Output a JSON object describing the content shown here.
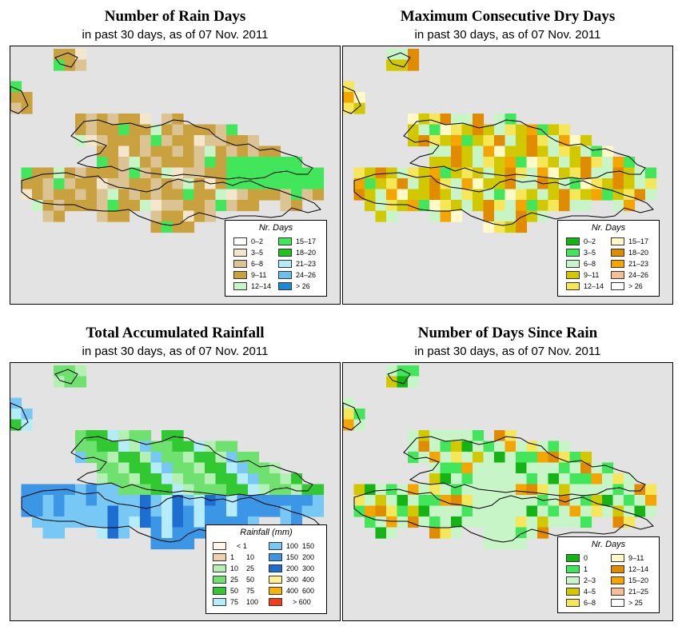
{
  "colors": {
    "map_background": "#e3e3e3",
    "coastline": "#000000"
  },
  "panels": [
    {
      "id": "rain_days",
      "title": "Number of Rain Days",
      "subtitle": "in past 30 days, as of  07 Nov. 2011",
      "legend_title": "Nr. Days",
      "legend": [
        {
          "label": "0–2",
          "color": "#ffffff"
        },
        {
          "label": "3–5",
          "color": "#f3e6cc"
        },
        {
          "label": "6–8",
          "color": "#dcc393"
        },
        {
          "label": "9–11",
          "color": "#c9a23f"
        },
        {
          "label": "12–14",
          "color": "#c8f5c8"
        },
        {
          "label": "15–17",
          "color": "#42e65a"
        },
        {
          "label": "18–20",
          "color": "#1ec31e"
        },
        {
          "label": "21–23",
          "color": "#b4ecfa"
        },
        {
          "label": "24–26",
          "color": "#6cc0f0"
        },
        {
          "label": "> 26",
          "color": "#1e8cd2"
        }
      ]
    },
    {
      "id": "dry_days",
      "title": "Maximum Consecutive Dry Days",
      "subtitle": "in past 30 days, as of  07 Nov. 2011",
      "legend_title": "Nr. Days",
      "legend": [
        {
          "label": "0–2",
          "color": "#14b414"
        },
        {
          "label": "3–5",
          "color": "#42e65a"
        },
        {
          "label": "6–8",
          "color": "#c8f5c8"
        },
        {
          "label": "9–11",
          "color": "#d2c800"
        },
        {
          "label": "12–14",
          "color": "#f5e65a"
        },
        {
          "label": "15–17",
          "color": "#fffac8"
        },
        {
          "label": "18–20",
          "color": "#e18c00"
        },
        {
          "label": "21–23",
          "color": "#f5a500"
        },
        {
          "label": "24–26",
          "color": "#f5be96"
        },
        {
          "label": "> 26",
          "color": "#ffffff"
        }
      ]
    },
    {
      "id": "rainfall",
      "title": "Total Accumulated Rainfall",
      "subtitle": "in past 30 days, as of  07 Nov. 2011",
      "legend_title": "Rainfall (mm)",
      "legend": [
        {
          "lo": "",
          "hi": "< 1",
          "color": "#fff5e6"
        },
        {
          "lo": "1",
          "hi": "10",
          "color": "#f0d2aa"
        },
        {
          "lo": "10",
          "hi": "25",
          "color": "#b4f0b4"
        },
        {
          "lo": "25",
          "hi": "50",
          "color": "#6ee16e"
        },
        {
          "lo": "50",
          "hi": "75",
          "color": "#32c832"
        },
        {
          "lo": "75",
          "hi": "100",
          "color": "#b4ecfa"
        },
        {
          "lo": "100",
          "hi": "150",
          "color": "#78c8f5"
        },
        {
          "lo": "150",
          "hi": "200",
          "color": "#3c96e6"
        },
        {
          "lo": "200",
          "hi": "300",
          "color": "#1e6ed2"
        },
        {
          "lo": "300",
          "hi": "400",
          "color": "#fff08c"
        },
        {
          "lo": "400",
          "hi": "600",
          "color": "#f5b400"
        },
        {
          "lo": "",
          "hi": "> 600",
          "color": "#f53c14"
        }
      ]
    },
    {
      "id": "since_rain",
      "title": "Number of Days Since Rain",
      "subtitle": "in past 30 days, as of  07 Nov. 2011",
      "legend_title": "Nr. Days",
      "legend": [
        {
          "label": "0",
          "color": "#14b414"
        },
        {
          "label": "1",
          "color": "#42e65a"
        },
        {
          "label": "2–3",
          "color": "#c8f5c8"
        },
        {
          "label": "4–5",
          "color": "#d2c800"
        },
        {
          "label": "6–8",
          "color": "#f5e65a"
        },
        {
          "label": "9–11",
          "color": "#fffac8"
        },
        {
          "label": "12–14",
          "color": "#e18c00"
        },
        {
          "label": "15–20",
          "color": "#f5a500"
        },
        {
          "label": "21–25",
          "color": "#f5be96"
        },
        {
          "label": "> 25",
          "color": "#ffffff"
        }
      ]
    }
  ]
}
